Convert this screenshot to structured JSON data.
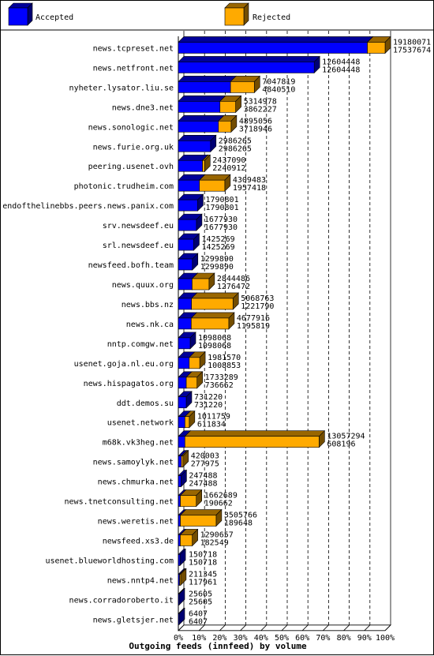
{
  "chart_data": {
    "type": "bar",
    "stacked": "3d-horizontal",
    "title": "Outgoing feeds (innfeed) by volume",
    "legend": [
      {
        "name": "Accepted",
        "color": "#0000ff",
        "icon": "accepted-box-icon"
      },
      {
        "name": "Rejected",
        "color": "#ffaa00",
        "icon": "rejected-box-icon"
      }
    ],
    "xlim": [
      0,
      100
    ],
    "x_ticks": [
      "0%",
      "10%",
      "20%",
      "30%",
      "40%",
      "50%",
      "60%",
      "70%",
      "80%",
      "90%",
      "100%"
    ],
    "scale_max": 19180071,
    "categories": [
      "news.tcpreset.net",
      "news.netfront.net",
      "nyheter.lysator.liu.se",
      "news.dne3.net",
      "news.sonologic.net",
      "news.furie.org.uk",
      "peering.usenet.ovh",
      "photonic.trudheim.com",
      "endofthelinebbs.peers.news.panix.com",
      "srv.newsdeef.eu",
      "srl.newsdeef.eu",
      "newsfeed.bofh.team",
      "news.quux.org",
      "news.bbs.nz",
      "news.nk.ca",
      "nntp.comgw.net",
      "usenet.goja.nl.eu.org",
      "news.hispagatos.org",
      "ddt.demos.su",
      "usenet.network",
      "m68k.vk3heg.net",
      "news.samoylyk.net",
      "news.chmurka.net",
      "news.tnetconsulting.net",
      "news.weretis.net",
      "newsfeed.xs3.de",
      "usenet.blueworldhosting.com",
      "news.nntp4.net",
      "news.corradoroberto.it",
      "news.gletsjer.net"
    ],
    "offered": [
      19180071,
      12604448,
      7047819,
      5314978,
      4895056,
      2986265,
      2437090,
      4309483,
      1790801,
      1677930,
      1425269,
      1299890,
      2844486,
      5068763,
      4677916,
      1098068,
      1981570,
      1733289,
      731220,
      1011759,
      13057294,
      420003,
      247488,
      1662689,
      3505766,
      1290657,
      150718,
      211345,
      25605,
      6407
    ],
    "accepted": [
      17537674,
      12604448,
      4840510,
      3862227,
      3718946,
      2986265,
      2240912,
      1957418,
      1790801,
      1677930,
      1425269,
      1299890,
      1276472,
      1221790,
      1195819,
      1098068,
      1008853,
      736662,
      731220,
      611834,
      608196,
      277975,
      247488,
      190662,
      189648,
      182549,
      150718,
      117961,
      25605,
      6407
    ]
  }
}
